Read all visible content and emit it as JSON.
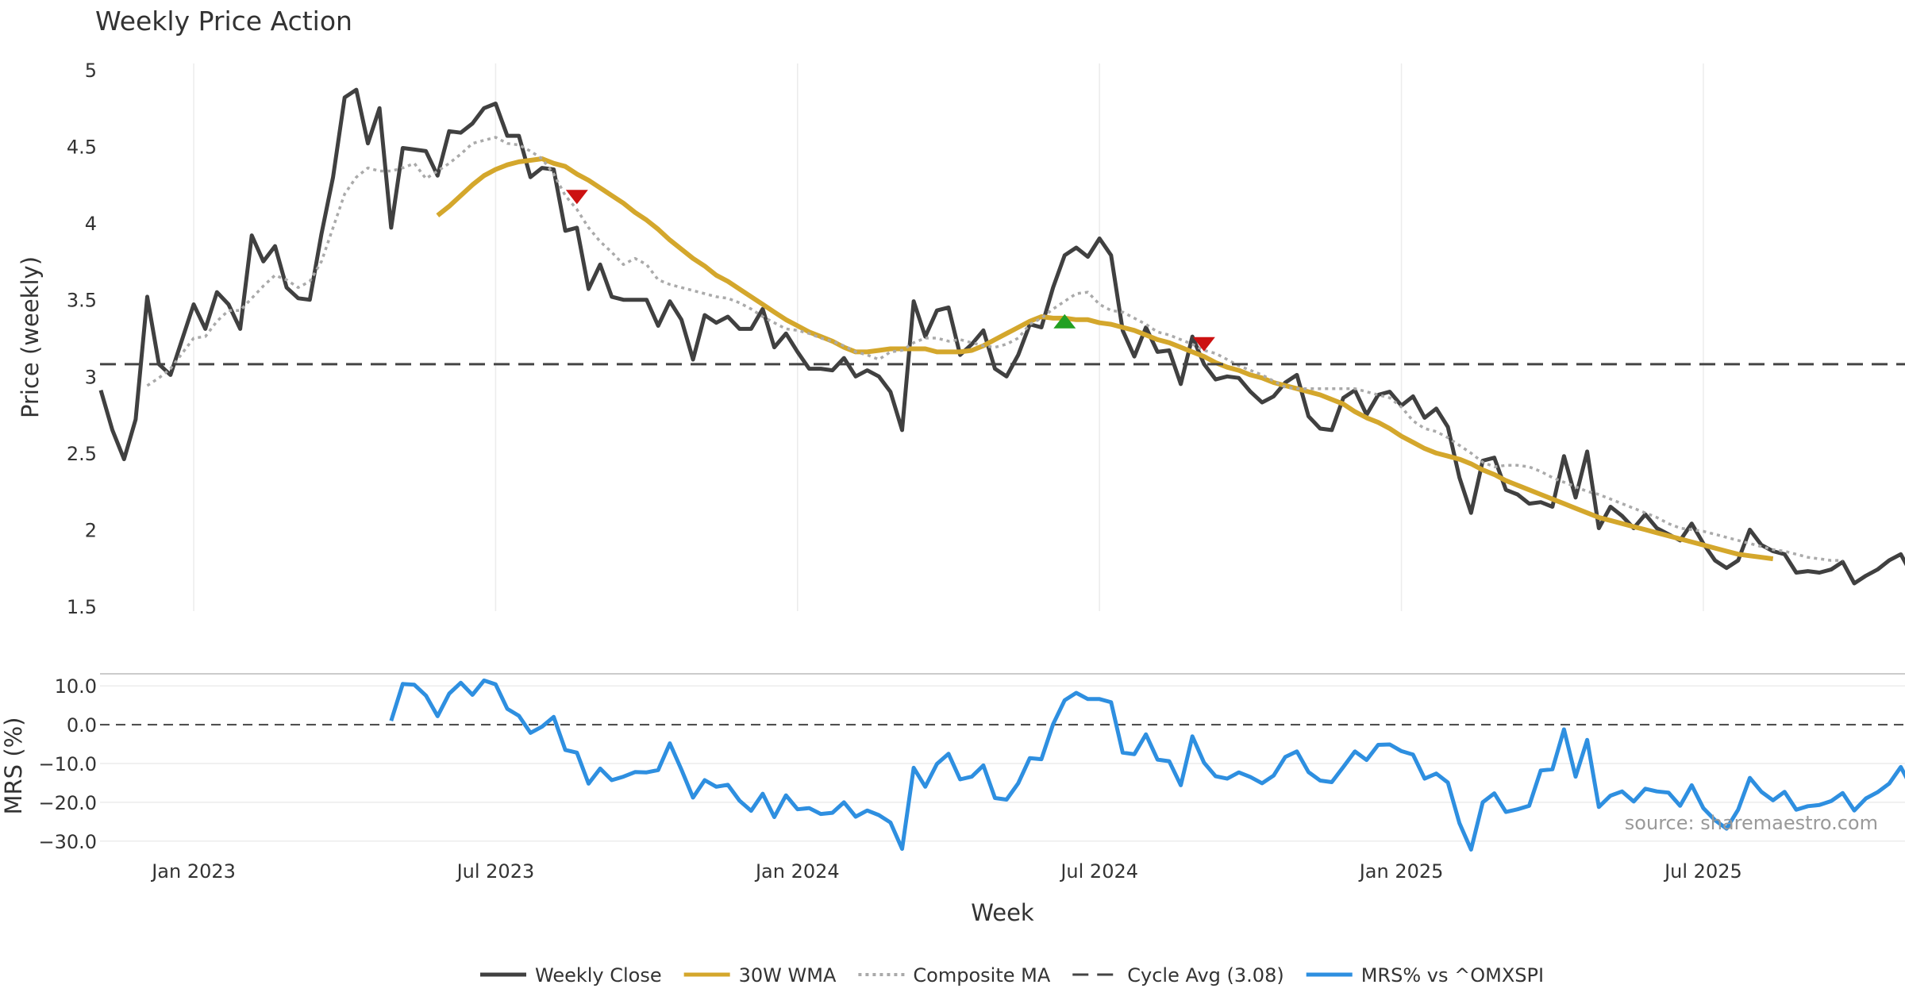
{
  "chart_data": {
    "type": "line",
    "title": "Weekly Price Action",
    "xlabel": "Week",
    "x_tick_labels": [
      "Jan 2023",
      "Jul 2023",
      "Jan 2024",
      "Jul 2024",
      "Jan 2025",
      "Jul 2025"
    ],
    "x_tick_index": [
      8,
      34,
      60,
      86,
      112,
      138
    ],
    "price_panel": {
      "ylabel": "Price (weekly)",
      "ylim": [
        1.5,
        5
      ],
      "y_ticks": [
        1.5,
        2,
        2.5,
        3,
        3.5,
        4,
        4.5,
        5
      ],
      "y_tick_labels": [
        "1.5",
        "2",
        "2.5",
        "3",
        "3.5",
        "4",
        "4.5",
        "5"
      ],
      "series": [
        {
          "name": "Weekly Close",
          "color": "#404040",
          "style": "solid",
          "start_index": 0,
          "values": [
            2.91,
            2.65,
            2.46,
            2.72,
            3.52,
            3.08,
            3.01,
            3.24,
            3.47,
            3.31,
            3.55,
            3.47,
            3.31,
            3.92,
            3.75,
            3.85,
            3.58,
            3.51,
            3.5,
            3.93,
            4.3,
            4.82,
            4.87,
            4.52,
            4.75,
            3.97,
            4.49,
            4.48,
            4.47,
            4.31,
            4.6,
            4.59,
            4.65,
            4.75,
            4.78,
            4.57,
            4.57,
            4.3,
            4.36,
            4.35,
            3.95,
            3.97,
            3.57,
            3.73,
            3.52,
            3.5,
            3.5,
            3.5,
            3.33,
            3.49,
            3.37,
            3.11,
            3.4,
            3.35,
            3.39,
            3.31,
            3.31,
            3.44,
            3.19,
            3.28,
            3.16,
            3.05,
            3.05,
            3.04,
            3.12,
            3.0,
            3.04,
            3.0,
            2.9,
            2.65,
            3.49,
            3.26,
            3.43,
            3.45,
            3.14,
            3.21,
            3.3,
            3.05,
            3.0,
            3.14,
            3.34,
            3.32,
            3.58,
            3.79,
            3.84,
            3.78,
            3.9,
            3.79,
            3.3,
            3.13,
            3.32,
            3.16,
            3.17,
            2.95,
            3.26,
            3.08,
            2.98,
            3.0,
            2.99,
            2.9,
            2.83,
            2.87,
            2.96,
            3.01,
            2.74,
            2.66,
            2.65,
            2.86,
            2.91,
            2.75,
            2.88,
            2.9,
            2.81,
            2.87,
            2.73,
            2.79,
            2.67,
            2.34,
            2.11,
            2.45,
            2.47,
            2.26,
            2.23,
            2.17,
            2.18,
            2.15,
            2.48,
            2.21,
            2.51,
            2.01,
            2.15,
            2.09,
            2.01,
            2.1,
            2.01,
            1.97,
            1.93,
            2.04,
            1.91,
            1.8,
            1.75,
            1.8,
            2.0,
            1.9,
            1.86,
            1.84,
            1.72,
            1.73,
            1.72,
            1.74,
            1.79,
            1.65,
            1.7,
            1.74,
            1.8,
            1.84,
            1.7
          ]
        },
        {
          "name": "30W WMA",
          "color": "#D4A72C",
          "style": "solid",
          "start_index": 29,
          "values": [
            4.05,
            4.11,
            4.18,
            4.25,
            4.31,
            4.35,
            4.38,
            4.4,
            4.41,
            4.42,
            4.39,
            4.37,
            4.32,
            4.28,
            4.23,
            4.18,
            4.13,
            4.07,
            4.02,
            3.96,
            3.89,
            3.83,
            3.77,
            3.72,
            3.66,
            3.62,
            3.57,
            3.52,
            3.47,
            3.42,
            3.37,
            3.33,
            3.29,
            3.26,
            3.23,
            3.19,
            3.16,
            3.16,
            3.17,
            3.18,
            3.18,
            3.18,
            3.18,
            3.16,
            3.16,
            3.16,
            3.17,
            3.2,
            3.24,
            3.28,
            3.32,
            3.36,
            3.39,
            3.38,
            3.38,
            3.37,
            3.37,
            3.35,
            3.34,
            3.32,
            3.3,
            3.27,
            3.24,
            3.22,
            3.19,
            3.16,
            3.13,
            3.09,
            3.06,
            3.04,
            3.01,
            2.99,
            2.96,
            2.94,
            2.92,
            2.9,
            2.88,
            2.85,
            2.82,
            2.77,
            2.73,
            2.7,
            2.66,
            2.61,
            2.57,
            2.53,
            2.5,
            2.48,
            2.46,
            2.43,
            2.39,
            2.36,
            2.32,
            2.29,
            2.26,
            2.23,
            2.2,
            2.17,
            2.14,
            2.11,
            2.08,
            2.06,
            2.04,
            2.02,
            2.0,
            1.98,
            1.96,
            1.94,
            1.92,
            1.9,
            1.88,
            1.86,
            1.84,
            1.83,
            1.82,
            1.81
          ]
        },
        {
          "name": "Composite MA",
          "color": "#AAAAAA",
          "style": "dotted",
          "start_index": 4,
          "values": [
            2.94,
            2.99,
            3.05,
            3.15,
            3.25,
            3.26,
            3.36,
            3.43,
            3.43,
            3.51,
            3.59,
            3.66,
            3.63,
            3.58,
            3.62,
            3.75,
            3.97,
            4.19,
            4.3,
            4.36,
            4.34,
            4.34,
            4.36,
            4.39,
            4.29,
            4.34,
            4.39,
            4.45,
            4.52,
            4.54,
            4.56,
            4.52,
            4.51,
            4.47,
            4.42,
            4.32,
            4.18,
            4.09,
            3.97,
            3.88,
            3.81,
            3.73,
            3.77,
            3.73,
            3.63,
            3.6,
            3.58,
            3.56,
            3.54,
            3.52,
            3.51,
            3.48,
            3.44,
            3.39,
            3.35,
            3.31,
            3.3,
            3.28,
            3.25,
            3.23,
            3.2,
            3.16,
            3.14,
            3.11,
            3.16,
            3.17,
            3.22,
            3.25,
            3.25,
            3.23,
            3.24,
            3.22,
            3.2,
            3.19,
            3.21,
            3.25,
            3.34,
            3.38,
            3.44,
            3.49,
            3.54,
            3.55,
            3.47,
            3.43,
            3.42,
            3.38,
            3.34,
            3.29,
            3.27,
            3.24,
            3.21,
            3.17,
            3.15,
            3.11,
            3.07,
            3.04,
            3.01,
            2.97,
            2.93,
            2.92,
            2.92,
            2.92,
            2.92,
            2.92,
            2.92,
            2.9,
            2.88,
            2.86,
            2.8,
            2.71,
            2.66,
            2.64,
            2.6,
            2.55,
            2.5,
            2.44,
            2.41,
            2.42,
            2.42,
            2.41,
            2.38,
            2.34,
            2.31,
            2.28,
            2.25,
            2.23,
            2.2,
            2.17,
            2.14,
            2.11,
            2.08,
            2.04,
            2.01,
            2.0,
            1.99,
            1.97,
            1.95,
            1.93,
            1.91,
            1.89,
            1.87,
            1.86,
            1.84,
            1.82,
            1.81,
            1.8,
            1.8
          ]
        },
        {
          "name": "Cycle Avg (3.08)",
          "color": "#444444",
          "style": "dashed",
          "value": 3.08
        }
      ],
      "markers": [
        {
          "type": "sell",
          "index": 41,
          "value": 4.17,
          "color": "#CC1111"
        },
        {
          "type": "buy",
          "index": 83,
          "value": 3.36,
          "color": "#22A022"
        },
        {
          "type": "sell",
          "index": 95,
          "value": 3.21,
          "color": "#CC1111"
        }
      ]
    },
    "mrs_panel": {
      "ylabel": "MRS (%)",
      "ylim": [
        -32.5,
        12.5
      ],
      "y_ticks": [
        10,
        0,
        -10,
        -20,
        -30
      ],
      "y_tick_labels": [
        "10.0",
        "0.0",
        "−10.0",
        "−20.0",
        "−30.0"
      ],
      "zero_line": 0,
      "series": [
        {
          "name": "MRS% vs ^OMXSPI",
          "color": "#2E8FE0",
          "start_index": 25,
          "values": [
            1.0,
            10.5,
            10.3,
            7.5,
            2.2,
            8.0,
            10.8,
            7.7,
            11.4,
            10.4,
            4.1,
            2.3,
            -2.1,
            -0.5,
            2.0,
            -6.5,
            -7.2,
            -15.2,
            -11.3,
            -14.3,
            -13.4,
            -12.2,
            -12.3,
            -11.7,
            -4.8,
            -11.6,
            -18.8,
            -14.3,
            -16.0,
            -15.5,
            -19.6,
            -22.2,
            -17.8,
            -23.8,
            -18.2,
            -21.8,
            -21.5,
            -23.0,
            -22.7,
            -20.0,
            -23.7,
            -22.1,
            -23.3,
            -25.2,
            -32.0,
            -11.1,
            -16.0,
            -10.1,
            -7.5,
            -14.1,
            -13.4,
            -10.5,
            -18.9,
            -19.3,
            -15.1,
            -8.6,
            -8.9,
            0.1,
            6.3,
            8.2,
            6.6,
            6.6,
            5.8,
            -7.2,
            -7.6,
            -2.5,
            -9.0,
            -9.4,
            -15.6,
            -3.0,
            -9.8,
            -13.3,
            -13.9,
            -12.3,
            -13.5,
            -15.1,
            -13.1,
            -8.3,
            -6.9,
            -12.2,
            -14.4,
            -14.8,
            -10.9,
            -6.9,
            -9.1,
            -5.2,
            -5.1,
            -6.8,
            -7.7,
            -13.9,
            -12.6,
            -14.9,
            -25.4,
            -32.2,
            -20.0,
            -17.7,
            -22.5,
            -21.8,
            -20.9,
            -11.8,
            -11.5,
            -1.2,
            -13.4,
            -3.9,
            -21.2,
            -18.3,
            -17.2,
            -19.8,
            -16.5,
            -17.2,
            -17.5,
            -20.9,
            -15.6,
            -21.5,
            -24.6,
            -26.8,
            -21.9,
            -13.7,
            -17.3,
            -19.5,
            -17.3,
            -21.9,
            -21.0,
            -20.7,
            -19.7,
            -17.6,
            -22.1,
            -19.0,
            -17.4,
            -15.2,
            -10.9,
            -16.6
          ]
        }
      ]
    },
    "legend": {
      "placement": "bottom-center",
      "entries": [
        "Weekly Close",
        "30W WMA",
        "Composite MA",
        "Cycle Avg (3.08)",
        "MRS% vs ^OMXSPI"
      ]
    },
    "annotation": "source: sharemaestro.com"
  }
}
